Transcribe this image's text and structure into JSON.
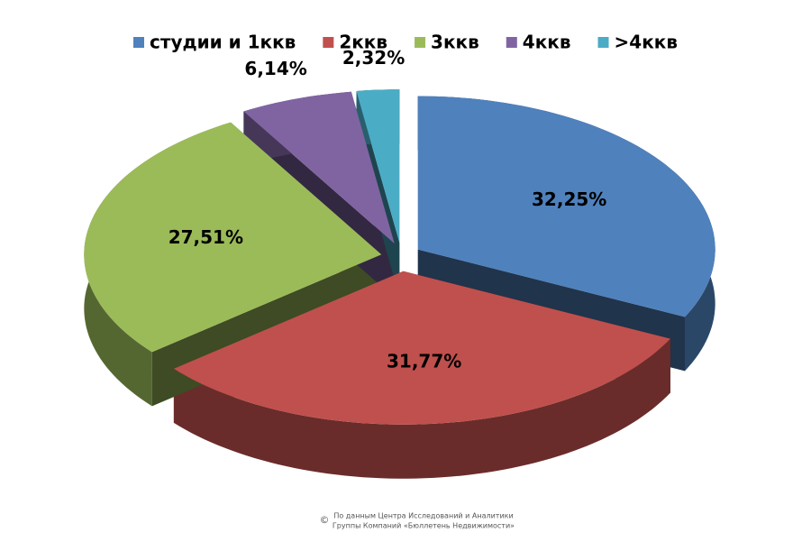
{
  "chart_data": {
    "type": "pie3d",
    "categories": [
      "студии и 1ккв",
      "2ккв",
      "3ккв",
      "4ккв",
      ">4ккв"
    ],
    "values": [
      32.25,
      31.77,
      27.51,
      6.14,
      2.32
    ],
    "value_labels": [
      "32,25%",
      "31,77%",
      "27,51%",
      "6,14%",
      "2,32%"
    ],
    "colors": [
      "#4f81bd",
      "#c0504d",
      "#9bbb59",
      "#8064a2",
      "#4bacc6"
    ],
    "legend": "top",
    "source": [
      "©",
      "По данным Центра Исследований и Аналитики",
      "Группы Компаний «Бюллетень Недвижимости»"
    ]
  }
}
